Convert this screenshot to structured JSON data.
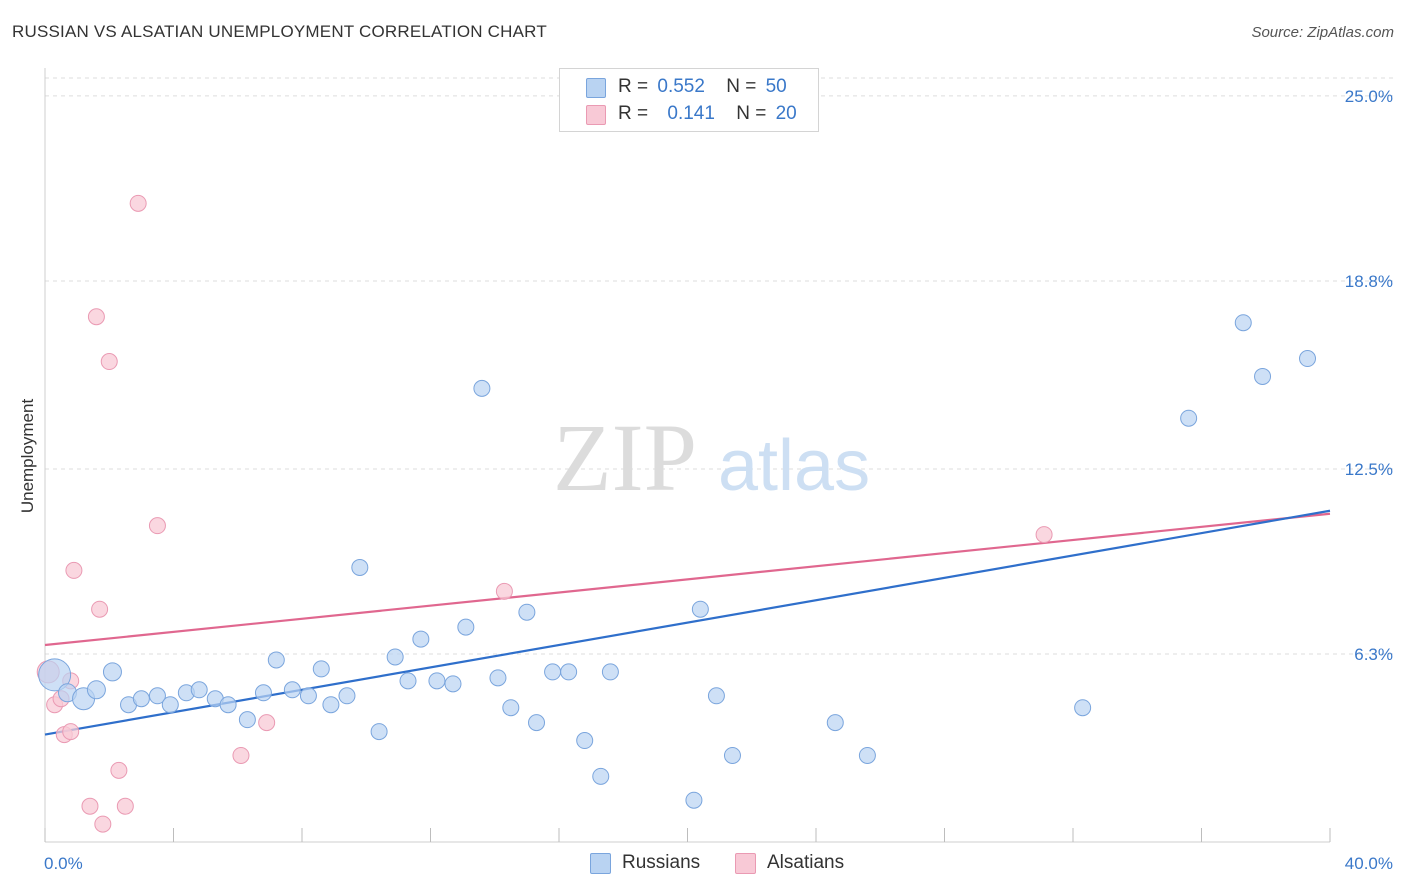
{
  "header": {
    "title": "RUSSIAN VS ALSATIAN UNEMPLOYMENT CORRELATION CHART",
    "source": "Source: ZipAtlas.com"
  },
  "watermark": {
    "zip": "ZIP",
    "atlas": "atlas"
  },
  "legend": {
    "rows": [
      {
        "r_label": "R =",
        "r_value": "0.552",
        "n_label": "N =",
        "n_value": "50",
        "color": "#a8c8f0"
      },
      {
        "r_label": "R =",
        "r_value": "0.141",
        "n_label": "N =",
        "n_value": "20",
        "color": "#f6b8cb"
      }
    ]
  },
  "bottom_legend": {
    "series1": "Russians",
    "series2": "Alsatians"
  },
  "colors": {
    "russians_fill": "#b9d3f2",
    "russians_stroke": "#7aa5dd",
    "russians_line": "#2f6fcb",
    "alsatians_fill": "#f8c9d6",
    "alsatians_stroke": "#ea9ab3",
    "alsatians_line": "#e0678f",
    "axis_value": "#3a78c9",
    "grid": "#dddddd"
  },
  "chart_data": {
    "type": "scatter",
    "title": "RUSSIAN VS ALSATIAN UNEMPLOYMENT CORRELATION CHART",
    "ylabel": "Unemployment",
    "xlabel": "",
    "xlim": [
      0,
      40
    ],
    "ylim": [
      0,
      25.6
    ],
    "x_tick_labels": [
      "0.0%",
      "40.0%"
    ],
    "y_ticks": [
      6.3,
      12.5,
      18.8,
      25.0
    ],
    "y_tick_labels": [
      "6.3%",
      "12.5%",
      "18.8%",
      "25.0%"
    ],
    "grid": "horizontal dashed",
    "legend_placement": "top-center",
    "series": [
      {
        "name": "Russians",
        "R": 0.552,
        "N": 50,
        "trend": {
          "x": [
            0,
            40
          ],
          "y": [
            3.6,
            11.1
          ]
        },
        "points": [
          [
            0.3,
            5.6,
            16
          ],
          [
            0.7,
            5.0,
            9
          ],
          [
            1.2,
            4.8,
            11
          ],
          [
            1.6,
            5.1,
            9
          ],
          [
            2.1,
            5.7,
            9
          ],
          [
            2.6,
            4.6,
            8
          ],
          [
            3.0,
            4.8,
            8
          ],
          [
            3.5,
            4.9,
            8
          ],
          [
            3.9,
            4.6,
            8
          ],
          [
            4.4,
            5.0,
            8
          ],
          [
            4.8,
            5.1,
            8
          ],
          [
            5.3,
            4.8,
            8
          ],
          [
            5.7,
            4.6,
            8
          ],
          [
            6.3,
            4.1,
            8
          ],
          [
            6.8,
            5.0,
            8
          ],
          [
            7.2,
            6.1,
            8
          ],
          [
            7.7,
            5.1,
            8
          ],
          [
            8.2,
            4.9,
            8
          ],
          [
            8.6,
            5.8,
            8
          ],
          [
            8.9,
            4.6,
            8
          ],
          [
            9.4,
            4.9,
            8
          ],
          [
            9.8,
            9.2,
            8
          ],
          [
            10.4,
            3.7,
            8
          ],
          [
            10.9,
            6.2,
            8
          ],
          [
            11.3,
            5.4,
            8
          ],
          [
            11.7,
            6.8,
            8
          ],
          [
            12.2,
            5.4,
            8
          ],
          [
            12.7,
            5.3,
            8
          ],
          [
            13.1,
            7.2,
            8
          ],
          [
            13.6,
            15.2,
            8
          ],
          [
            14.1,
            5.5,
            8
          ],
          [
            14.5,
            4.5,
            8
          ],
          [
            15.0,
            7.7,
            8
          ],
          [
            15.3,
            4.0,
            8
          ],
          [
            15.8,
            5.7,
            8
          ],
          [
            16.3,
            5.7,
            8
          ],
          [
            16.8,
            3.4,
            8
          ],
          [
            17.3,
            2.2,
            8
          ],
          [
            17.6,
            5.7,
            8
          ],
          [
            20.2,
            1.4,
            8
          ],
          [
            20.4,
            7.8,
            8
          ],
          [
            20.9,
            4.9,
            8
          ],
          [
            21.4,
            2.9,
            8
          ],
          [
            24.6,
            4.0,
            8
          ],
          [
            25.6,
            2.9,
            8
          ],
          [
            32.3,
            4.5,
            8
          ],
          [
            35.6,
            14.2,
            8
          ],
          [
            37.3,
            17.4,
            8
          ],
          [
            37.9,
            15.6,
            8
          ],
          [
            39.3,
            16.2,
            8
          ]
        ]
      },
      {
        "name": "Alsatians",
        "R": 0.141,
        "N": 20,
        "trend": {
          "x": [
            0,
            40
          ],
          "y": [
            6.6,
            11.0
          ]
        },
        "points": [
          [
            0.1,
            5.7,
            11
          ],
          [
            0.3,
            4.6,
            8
          ],
          [
            0.5,
            4.8,
            8
          ],
          [
            0.6,
            3.6,
            8
          ],
          [
            0.8,
            5.4,
            8
          ],
          [
            0.8,
            3.7,
            8
          ],
          [
            0.9,
            9.1,
            8
          ],
          [
            1.4,
            1.2,
            8
          ],
          [
            1.6,
            17.6,
            8
          ],
          [
            1.7,
            7.8,
            8
          ],
          [
            1.8,
            0.6,
            8
          ],
          [
            2.0,
            16.1,
            8
          ],
          [
            2.3,
            2.4,
            8
          ],
          [
            2.5,
            1.2,
            8
          ],
          [
            2.9,
            21.4,
            8
          ],
          [
            3.5,
            10.6,
            8
          ],
          [
            6.1,
            2.9,
            8
          ],
          [
            6.9,
            4.0,
            8
          ],
          [
            14.3,
            8.4,
            8
          ],
          [
            31.1,
            10.3,
            8
          ]
        ]
      }
    ]
  }
}
